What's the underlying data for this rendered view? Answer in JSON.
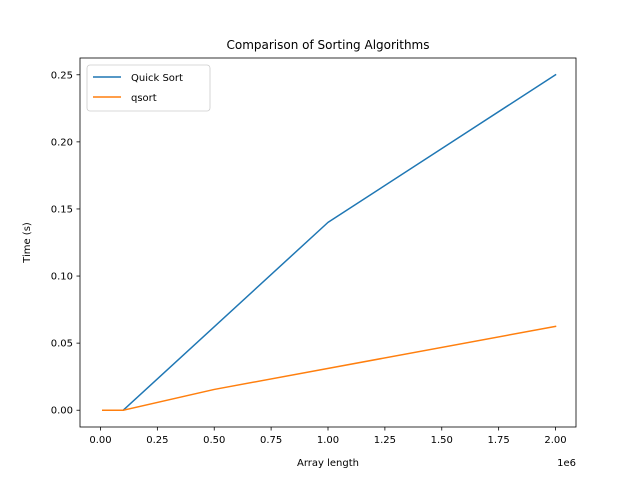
{
  "chart_data": {
    "type": "line",
    "title": "Comparison of Sorting Algorithms",
    "xlabel": "Array length",
    "ylabel": "Time (s)",
    "x_offset_label": "1e6",
    "xlim": [
      -0.09,
      2.09
    ],
    "ylim": [
      -0.0125,
      0.2625
    ],
    "x_ticks": [
      0.0,
      0.25,
      0.5,
      0.75,
      1.0,
      1.25,
      1.5,
      1.75,
      2.0
    ],
    "x_tick_labels": [
      "0.00",
      "0.25",
      "0.50",
      "0.75",
      "1.00",
      "1.25",
      "1.50",
      "1.75",
      "2.00"
    ],
    "y_ticks": [
      0.0,
      0.05,
      0.1,
      0.15,
      0.2,
      0.25
    ],
    "y_tick_labels": [
      "0.00",
      "0.05",
      "0.10",
      "0.15",
      "0.20",
      "0.25"
    ],
    "grid": false,
    "legend_position": "upper-left",
    "series": [
      {
        "name": "Quick Sort",
        "color": "#1f77b4",
        "x": [
          0.01,
          0.1,
          1.0,
          2.0
        ],
        "y": [
          0.0,
          0.0,
          0.14,
          0.25
        ]
      },
      {
        "name": "qsort",
        "color": "#ff7f0e",
        "x": [
          0.01,
          0.1,
          0.5,
          2.0
        ],
        "y": [
          0.0,
          0.0,
          0.0155,
          0.0625
        ]
      }
    ]
  }
}
